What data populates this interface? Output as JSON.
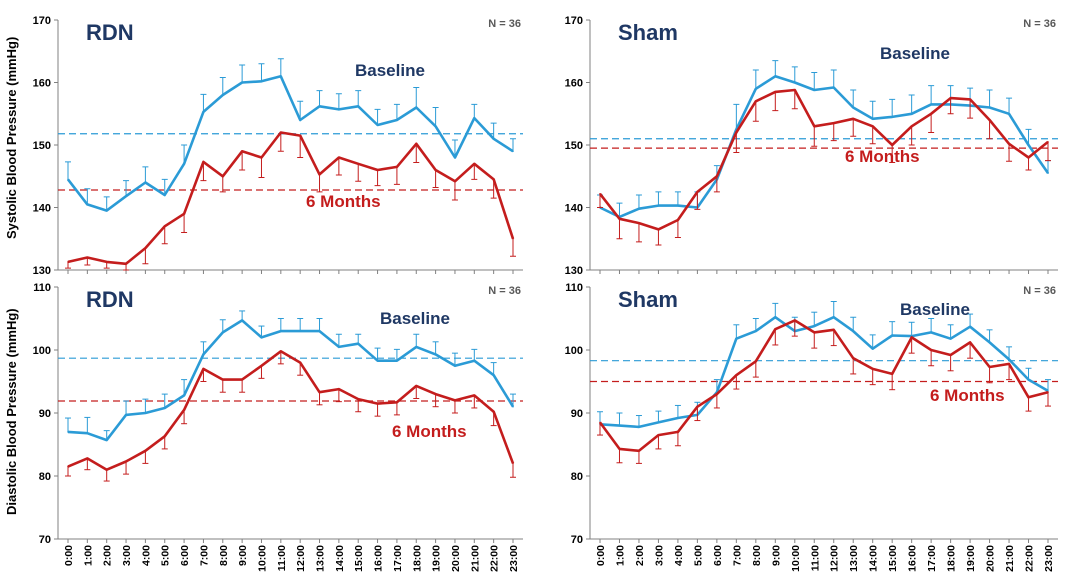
{
  "colors": {
    "baseline": "#2b9bd6",
    "six_months": "#c41d1d",
    "panel_title": "#1f3864",
    "axis": "#808080"
  },
  "y_axis_titles": [
    "Systolic  Blood Pressure (mmHg)",
    "Diastolic  Blood Pressure (mmHg)"
  ],
  "chart_data": [
    {
      "type": "line",
      "panel": "top-left",
      "title": "RDN",
      "n_label": "N = 36",
      "ylim": [
        130,
        170
      ],
      "yticks": [
        130,
        140,
        150,
        160,
        170
      ],
      "x_tick_labels_shown": false,
      "categories": [
        "0:00",
        "1:00",
        "2:00",
        "3:00",
        "4:00",
        "5:00",
        "6:00",
        "7:00",
        "8:00",
        "9:00",
        "10:00",
        "11:00",
        "12:00",
        "13:00",
        "14:00",
        "15:00",
        "16:00",
        "17:00",
        "18:00",
        "19:00",
        "20:00",
        "21:00",
        "22:00",
        "23:00"
      ],
      "series": [
        {
          "name": "Baseline",
          "color": "#2b9bd6",
          "mean_line": 151.8,
          "label_position": "above",
          "values": [
            144.5,
            140.5,
            139.5,
            141.8,
            144.0,
            142.0,
            147.0,
            155.3,
            158.0,
            160.0,
            160.2,
            161.0,
            154.0,
            156.2,
            155.7,
            156.2,
            153.2,
            154.0,
            156.0,
            153.0,
            148.0,
            154.3,
            151.0,
            149.0
          ],
          "errors": [
            2.8,
            2.5,
            2.2,
            2.5,
            2.5,
            2.5,
            3.0,
            2.8,
            2.8,
            2.8,
            2.8,
            2.8,
            3.0,
            2.5,
            2.5,
            2.5,
            2.5,
            2.5,
            3.2,
            3.0,
            2.8,
            2.2,
            2.5,
            2.0
          ]
        },
        {
          "name": "6 Months",
          "color": "#c41d1d",
          "mean_line": 142.8,
          "label_position": "below",
          "values": [
            131.3,
            132.0,
            131.3,
            131.0,
            133.5,
            137.0,
            139.0,
            147.3,
            145.0,
            149.0,
            148.0,
            152.0,
            151.5,
            145.3,
            148.0,
            147.0,
            146.0,
            146.5,
            150.2,
            146.0,
            144.2,
            147.0,
            144.5,
            135.0
          ],
          "errors": [
            1.0,
            1.2,
            1.0,
            1.0,
            2.5,
            2.8,
            3.0,
            3.0,
            2.5,
            3.0,
            3.2,
            3.0,
            3.5,
            2.8,
            2.8,
            2.8,
            2.5,
            2.8,
            3.0,
            2.8,
            3.0,
            2.5,
            3.0,
            2.8
          ]
        }
      ]
    },
    {
      "type": "line",
      "panel": "top-right",
      "title": "Sham",
      "n_label": "N = 36",
      "ylim": [
        130,
        170
      ],
      "yticks": [
        130,
        140,
        150,
        160,
        170
      ],
      "x_tick_labels_shown": false,
      "categories": [
        "0:00",
        "1:00",
        "2:00",
        "3:00",
        "4:00",
        "5:00",
        "6:00",
        "7:00",
        "8:00",
        "9:00",
        "10:00",
        "11:00",
        "12:00",
        "13:00",
        "14:00",
        "15:00",
        "16:00",
        "17:00",
        "18:00",
        "19:00",
        "20:00",
        "21:00",
        "22:00",
        "23:00"
      ],
      "series": [
        {
          "name": "Baseline",
          "color": "#2b9bd6",
          "mean_line": 151.0,
          "label_position": "above",
          "values": [
            140.0,
            138.5,
            139.8,
            140.3,
            140.3,
            140.0,
            144.5,
            152.5,
            159.0,
            161.0,
            160.0,
            158.8,
            159.2,
            156.0,
            154.2,
            154.5,
            155.0,
            156.5,
            156.5,
            156.3,
            156.0,
            155.0,
            150.0,
            145.5
          ],
          "errors": [
            2.0,
            2.2,
            2.2,
            2.2,
            2.2,
            2.5,
            2.2,
            4.0,
            3.0,
            2.5,
            2.5,
            2.8,
            2.8,
            2.8,
            2.8,
            2.8,
            3.0,
            3.0,
            3.0,
            2.8,
            2.8,
            2.5,
            2.5,
            2.0
          ]
        },
        {
          "name": "6 Months",
          "color": "#c41d1d",
          "mean_line": 149.5,
          "label_position": "below",
          "values": [
            142.2,
            138.2,
            137.5,
            136.5,
            138.0,
            142.5,
            145.0,
            152.0,
            157.0,
            158.5,
            158.8,
            153.0,
            153.5,
            154.2,
            153.0,
            150.0,
            153.0,
            155.0,
            157.5,
            157.3,
            154.0,
            150.2,
            148.0,
            150.5
          ],
          "errors": [
            2.2,
            3.2,
            3.0,
            2.5,
            2.8,
            2.8,
            2.5,
            3.2,
            3.2,
            3.0,
            3.0,
            3.2,
            2.8,
            2.8,
            2.8,
            2.8,
            3.0,
            3.0,
            2.5,
            3.0,
            3.0,
            2.8,
            2.0,
            3.0
          ]
        }
      ]
    },
    {
      "type": "line",
      "panel": "bottom-left",
      "title": "RDN",
      "n_label": "N = 36",
      "ylim": [
        70,
        110
      ],
      "yticks": [
        70,
        80,
        90,
        100,
        110
      ],
      "x_tick_labels_shown": true,
      "categories": [
        "0:00",
        "1:00",
        "2:00",
        "3:00",
        "4:00",
        "5:00",
        "6:00",
        "7:00",
        "8:00",
        "9:00",
        "10:00",
        "11:00",
        "12:00",
        "13:00",
        "14:00",
        "15:00",
        "16:00",
        "17:00",
        "18:00",
        "19:00",
        "20:00",
        "21:00",
        "22:00",
        "23:00"
      ],
      "series": [
        {
          "name": "Baseline",
          "color": "#2b9bd6",
          "mean_line": 98.7,
          "label_position": "above",
          "values": [
            87.0,
            86.8,
            85.7,
            89.7,
            90.0,
            90.8,
            92.8,
            99.3,
            102.8,
            104.7,
            102.0,
            103.0,
            103.0,
            103.0,
            100.5,
            101.0,
            98.3,
            98.3,
            100.5,
            99.3,
            97.5,
            98.3,
            96.0,
            91.0
          ],
          "errors": [
            2.2,
            2.5,
            1.5,
            2.2,
            2.2,
            2.2,
            2.5,
            2.0,
            2.0,
            1.5,
            1.8,
            2.0,
            2.0,
            2.0,
            2.0,
            1.5,
            2.0,
            1.8,
            2.0,
            2.0,
            2.0,
            1.8,
            2.0,
            2.0
          ]
        },
        {
          "name": "6 Months",
          "color": "#c41d1d",
          "mean_line": 91.9,
          "label_position": "below",
          "values": [
            81.5,
            82.8,
            81.0,
            82.3,
            84.0,
            86.3,
            90.5,
            97.0,
            95.3,
            95.3,
            97.5,
            99.8,
            98.0,
            93.3,
            93.8,
            92.2,
            91.5,
            91.7,
            94.3,
            93.0,
            92.0,
            92.8,
            90.2,
            82.0
          ],
          "errors": [
            1.5,
            1.8,
            1.8,
            2.0,
            2.0,
            2.0,
            2.2,
            2.0,
            2.0,
            2.0,
            2.0,
            2.0,
            2.0,
            2.0,
            2.0,
            2.0,
            2.0,
            2.0,
            2.0,
            2.0,
            2.0,
            2.0,
            2.2,
            2.2
          ]
        }
      ]
    },
    {
      "type": "line",
      "panel": "bottom-right",
      "title": "Sham",
      "n_label": "N = 36",
      "ylim": [
        70,
        110
      ],
      "yticks": [
        70,
        80,
        90,
        100,
        110
      ],
      "x_tick_labels_shown": true,
      "categories": [
        "0:00",
        "1:00",
        "2:00",
        "3:00",
        "4:00",
        "5:00",
        "6:00",
        "7:00",
        "8:00",
        "9:00",
        "10:00",
        "11:00",
        "12:00",
        "13:00",
        "14:00",
        "15:00",
        "16:00",
        "17:00",
        "18:00",
        "19:00",
        "20:00",
        "21:00",
        "22:00",
        "23:00"
      ],
      "series": [
        {
          "name": "Baseline",
          "color": "#2b9bd6",
          "mean_line": 98.3,
          "label_position": "above",
          "values": [
            88.2,
            88.0,
            87.8,
            88.5,
            89.2,
            89.7,
            93.3,
            101.8,
            103.0,
            105.2,
            103.0,
            103.8,
            105.2,
            103.0,
            100.2,
            102.3,
            102.2,
            102.8,
            101.8,
            103.7,
            101.2,
            98.5,
            95.3,
            93.5
          ],
          "errors": [
            2.0,
            2.0,
            1.8,
            1.8,
            2.0,
            2.0,
            2.0,
            2.2,
            2.0,
            2.2,
            2.2,
            2.2,
            2.5,
            2.2,
            2.2,
            2.2,
            2.2,
            2.2,
            2.2,
            2.0,
            2.0,
            2.0,
            1.8,
            1.8
          ]
        },
        {
          "name": "6 Months",
          "color": "#c41d1d",
          "mean_line": 95.0,
          "label_position": "below",
          "values": [
            88.5,
            84.3,
            84.0,
            86.5,
            87.0,
            91.0,
            93.0,
            96.0,
            98.2,
            103.3,
            104.7,
            102.8,
            103.2,
            98.7,
            97.0,
            96.2,
            102.0,
            100.0,
            99.2,
            101.2,
            97.3,
            97.8,
            92.5,
            93.3
          ],
          "errors": [
            2.0,
            2.2,
            2.0,
            2.2,
            2.2,
            2.2,
            2.2,
            2.2,
            2.5,
            2.5,
            2.5,
            2.5,
            2.5,
            2.5,
            2.5,
            2.5,
            2.5,
            2.5,
            2.5,
            2.5,
            2.5,
            2.5,
            2.2,
            2.2
          ]
        }
      ]
    }
  ]
}
